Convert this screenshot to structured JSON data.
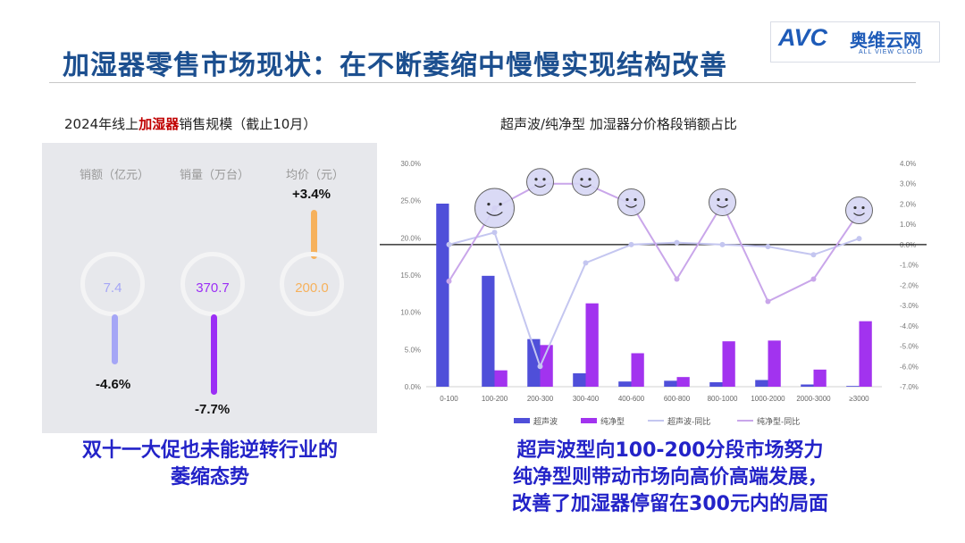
{
  "header": {
    "title": "加湿器零售市场现状：在不断萎缩中慢慢实现结构改善",
    "logo_avc": "AVC",
    "logo_cn": "奥维云网",
    "logo_en": "ALL VIEW CLOUD"
  },
  "left": {
    "title_prefix": "2024年线上",
    "title_highlight": "加湿器",
    "title_suffix": "销售规模（截止10月）",
    "kpis": [
      {
        "label": "销额（亿元）",
        "value": "7.4",
        "change": "-4.6%",
        "color": "#a5a6f6"
      },
      {
        "label": "销量（万台）",
        "value": "370.7",
        "change": "-7.7%",
        "color": "#9b2ef5"
      },
      {
        "label": "均价（元）",
        "value": "200.0",
        "change": "+3.4%",
        "color": "#f6b15c"
      }
    ],
    "caption_line1": "双十一大促也未能逆转行业的",
    "caption_line2": "萎缩态势"
  },
  "right": {
    "caption_line1": "超声波型向100-200分段市场努力",
    "caption_line2": "纯净型则带动市场向高价高端发展，",
    "caption_line3": "改善了加湿器停留在300元内的局面"
  },
  "chart_data": {
    "type": "bar",
    "title": "超声波/纯净型 加湿器分价格段销额占比",
    "categories": [
      "0-100",
      "100-200",
      "200-300",
      "300-400",
      "400-600",
      "600-800",
      "800-1000",
      "1000-2000",
      "2000-3000",
      "≥3000"
    ],
    "series": [
      {
        "name": "超声波",
        "type": "bar",
        "axis": "left",
        "color": "#4f4fd9",
        "values": [
          24.6,
          14.9,
          6.4,
          1.8,
          0.7,
          0.8,
          0.6,
          0.9,
          0.3,
          0.1
        ]
      },
      {
        "name": "纯净型",
        "type": "bar",
        "axis": "left",
        "color": "#a233ef",
        "values": [
          0,
          2.2,
          5.6,
          11.2,
          4.5,
          1.3,
          6.1,
          6.2,
          2.3,
          8.8
        ]
      },
      {
        "name": "超声波-同比",
        "type": "line",
        "axis": "right",
        "color": "#c4c6f0",
        "values": [
          0.0,
          0.6,
          -6.0,
          -0.9,
          0.0,
          0.1,
          0.0,
          -0.1,
          -0.5,
          0.3
        ]
      },
      {
        "name": "纯净型-同比",
        "type": "line",
        "axis": "right",
        "color": "#c9a6ea",
        "values": [
          -1.8,
          1.8,
          3.0,
          3.0,
          2.0,
          -1.7,
          2.0,
          -2.8,
          -1.7,
          1.6
        ]
      }
    ],
    "ylim_left": [
      0,
      30
    ],
    "yticks_left": [
      "0.0%",
      "5.0%",
      "10.0%",
      "15.0%",
      "20.0%",
      "25.0%",
      "30.0%"
    ],
    "ylim_right": [
      -7,
      4
    ],
    "yticks_right": [
      "-7.0%",
      "-6.0%",
      "-5.0%",
      "-4.0%",
      "-3.0%",
      "-2.0%",
      "-1.0%",
      "0.0%",
      "1.0%",
      "2.0%",
      "3.0%",
      "4.0%"
    ],
    "smiley_categories": [
      "100-200",
      "200-300",
      "300-400",
      "400-600",
      "800-1000",
      "≥3000"
    ],
    "legend_position": "bottom"
  }
}
